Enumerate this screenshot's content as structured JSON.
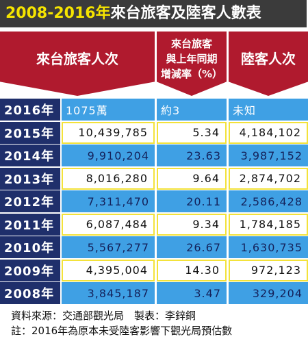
{
  "title": {
    "years": "2008-2016年",
    "text": "來台旅客及陸客人數表"
  },
  "table": {
    "columns": [
      [
        "來台旅客人次"
      ],
      [
        "來台旅客",
        "與上年同期",
        "增減率（%）"
      ],
      [
        "陸客人次"
      ]
    ],
    "rows": [
      [
        "2016年",
        "1075萬",
        "約3",
        "未知"
      ],
      [
        "2015年",
        "10,439,785",
        "5.34",
        "4,184,102"
      ],
      [
        "2014年",
        "9,910,204",
        "23.63",
        "3,987,152"
      ],
      [
        "2013年",
        "8,016,280",
        "9.64",
        "2,874,702"
      ],
      [
        "2012年",
        "7,311,470",
        "20.11",
        "2,586,428"
      ],
      [
        "2011年",
        "6,087,484",
        "9.34",
        "1,784,185"
      ],
      [
        "2010年",
        "5,567,277",
        "26.67",
        "1,630,735"
      ],
      [
        "2009年",
        "4,395,004",
        "14.30",
        "972,123"
      ],
      [
        "2008年",
        "3,845,187",
        "3.47",
        "329,204"
      ]
    ]
  },
  "footer": {
    "source": "資料來源：交通部觀光局　製表：李鋅銅",
    "note": "註：2016年為原本未受陸客影響下觀光局預估數"
  }
}
